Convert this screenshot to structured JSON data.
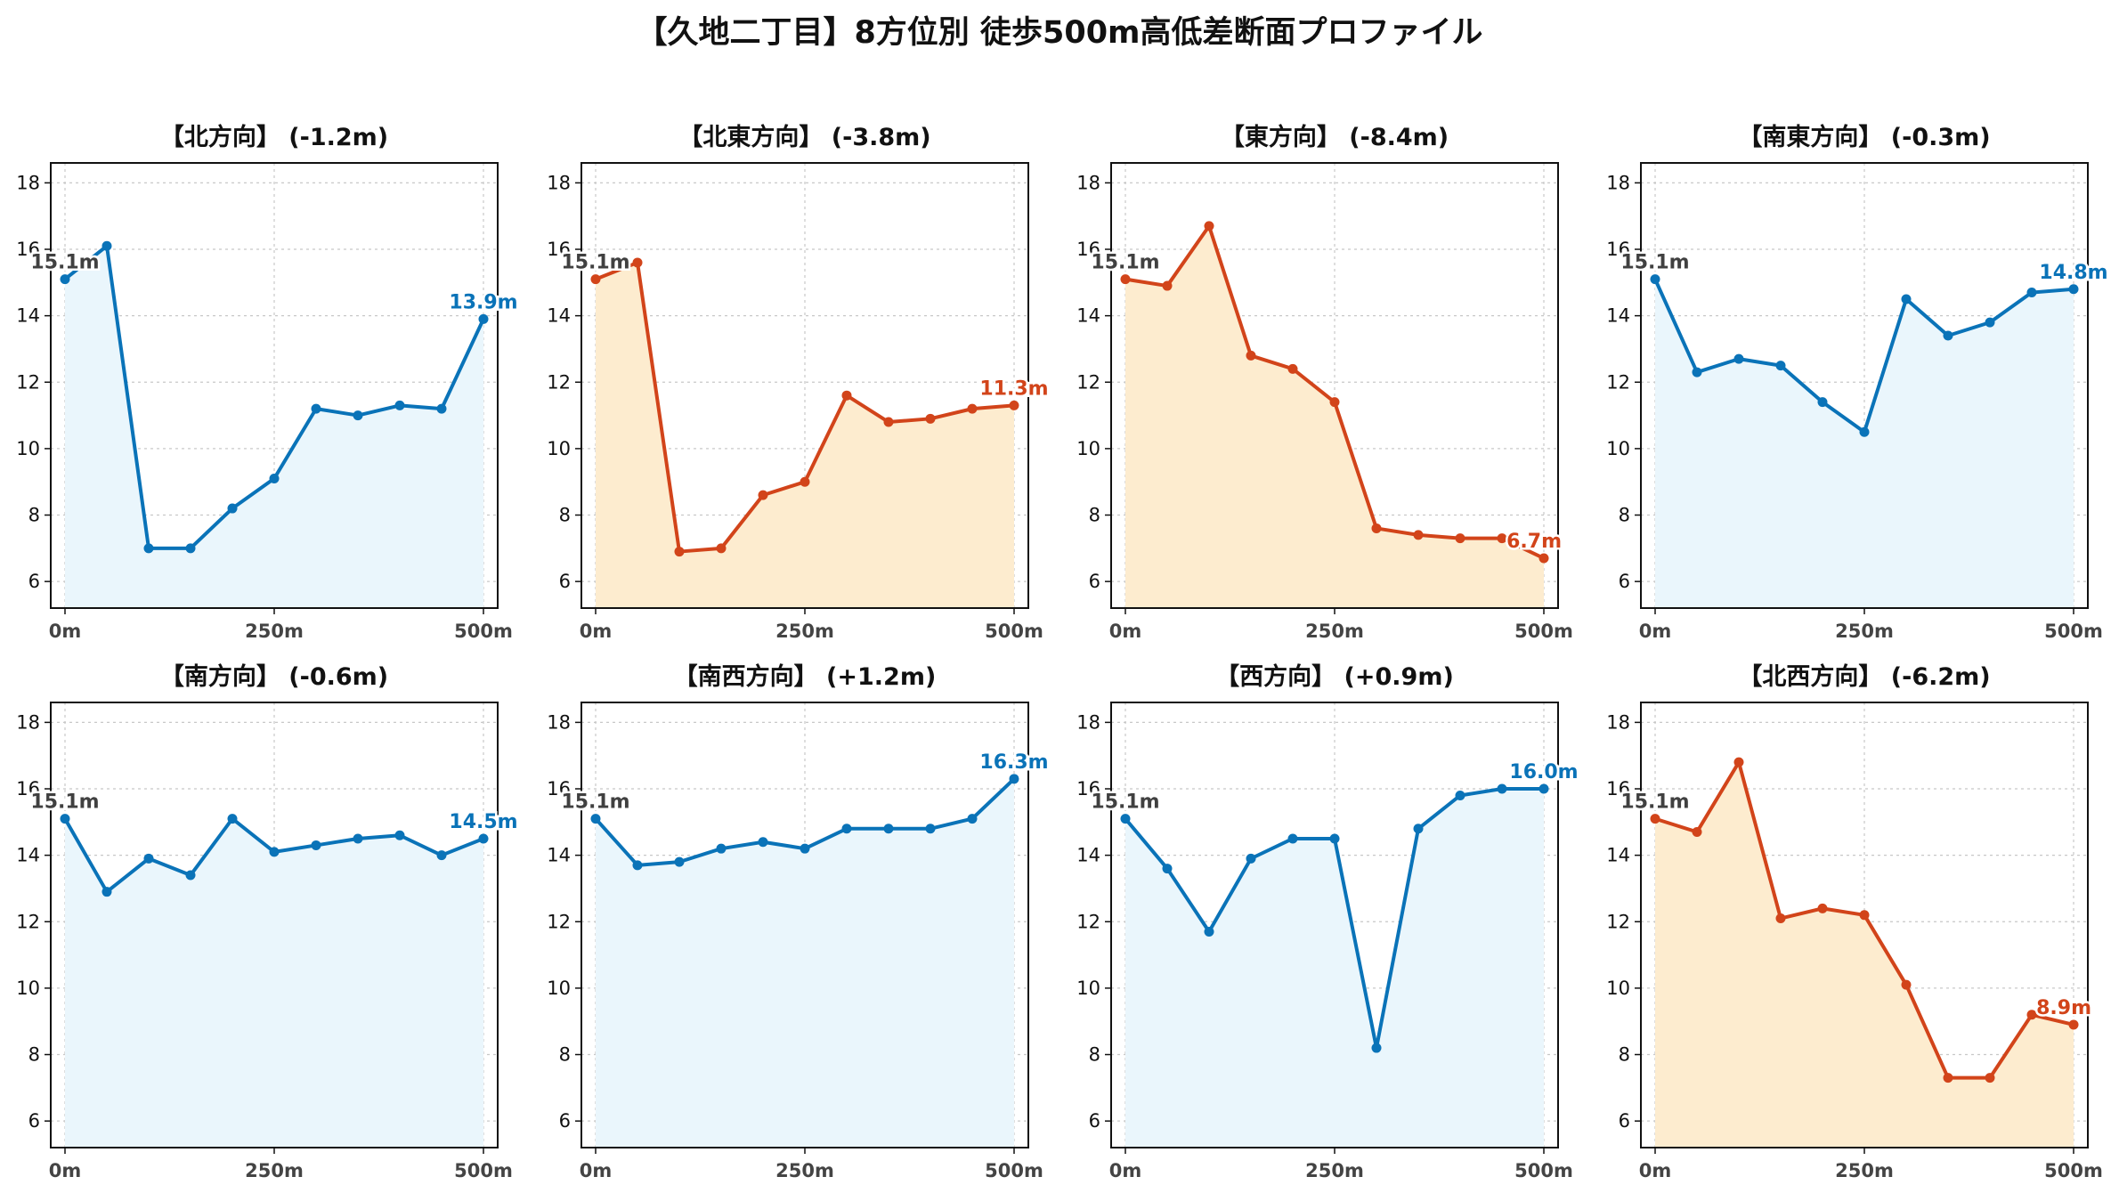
{
  "page": {
    "title": "【久地二丁目】8方位別 徒歩500m高低差断面プロファイル"
  },
  "colors": {
    "up_line": "#0a73b8",
    "up_fill": "#eaf6fc",
    "down_line": "#d2441a",
    "down_fill": "#fdeccf",
    "start_label": "#404040",
    "grid": "#c8c8c8"
  },
  "chart_data": [
    {
      "type": "area",
      "title": "【北方向】 (-1.2m)",
      "trend": "up",
      "x": [
        0,
        50,
        100,
        150,
        200,
        250,
        300,
        350,
        400,
        450,
        500
      ],
      "y": [
        15.1,
        16.1,
        7.0,
        7.0,
        8.2,
        9.1,
        11.2,
        11.0,
        11.3,
        11.2,
        13.9
      ],
      "start_label": "15.1m",
      "end_label": "13.9m",
      "xticks": [
        "0m",
        "250m",
        "500m"
      ],
      "yticks": [
        "6",
        "8",
        "10",
        "12",
        "14",
        "16",
        "18"
      ],
      "ylim": [
        5.2,
        18.6
      ],
      "grid": true
    },
    {
      "type": "area",
      "title": "【北東方向】 (-3.8m)",
      "trend": "down",
      "x": [
        0,
        50,
        100,
        150,
        200,
        250,
        300,
        350,
        400,
        450,
        500
      ],
      "y": [
        15.1,
        15.6,
        6.9,
        7.0,
        8.6,
        9.0,
        11.6,
        10.8,
        10.9,
        11.2,
        11.3
      ],
      "start_label": "15.1m",
      "end_label": "11.3m",
      "xticks": [
        "0m",
        "250m",
        "500m"
      ],
      "yticks": [
        "6",
        "8",
        "10",
        "12",
        "14",
        "16",
        "18"
      ],
      "ylim": [
        5.2,
        18.6
      ],
      "grid": true
    },
    {
      "type": "area",
      "title": "【東方向】 (-8.4m)",
      "trend": "down",
      "x": [
        0,
        50,
        100,
        150,
        200,
        250,
        300,
        350,
        400,
        450,
        500
      ],
      "y": [
        15.1,
        14.9,
        16.7,
        12.8,
        12.4,
        11.4,
        7.6,
        7.4,
        7.3,
        7.3,
        6.7
      ],
      "start_label": "15.1m",
      "end_label": "6.7m",
      "xticks": [
        "0m",
        "250m",
        "500m"
      ],
      "yticks": [
        "6",
        "8",
        "10",
        "12",
        "14",
        "16",
        "18"
      ],
      "ylim": [
        5.2,
        18.6
      ],
      "grid": true
    },
    {
      "type": "area",
      "title": "【南東方向】 (-0.3m)",
      "trend": "up",
      "x": [
        0,
        50,
        100,
        150,
        200,
        250,
        300,
        350,
        400,
        450,
        500
      ],
      "y": [
        15.1,
        12.3,
        12.7,
        12.5,
        11.4,
        10.5,
        14.5,
        13.4,
        13.8,
        14.7,
        14.8
      ],
      "start_label": "15.1m",
      "end_label": "14.8m",
      "xticks": [
        "0m",
        "250m",
        "500m"
      ],
      "yticks": [
        "6",
        "8",
        "10",
        "12",
        "14",
        "16",
        "18"
      ],
      "ylim": [
        5.2,
        18.6
      ],
      "grid": true
    },
    {
      "type": "area",
      "title": "【南方向】 (-0.6m)",
      "trend": "up",
      "x": [
        0,
        50,
        100,
        150,
        200,
        250,
        300,
        350,
        400,
        450,
        500
      ],
      "y": [
        15.1,
        12.9,
        13.9,
        13.4,
        15.1,
        14.1,
        14.3,
        14.5,
        14.6,
        14.0,
        14.5
      ],
      "start_label": "15.1m",
      "end_label": "14.5m",
      "xticks": [
        "0m",
        "250m",
        "500m"
      ],
      "yticks": [
        "6",
        "8",
        "10",
        "12",
        "14",
        "16",
        "18"
      ],
      "ylim": [
        5.2,
        18.6
      ],
      "grid": true
    },
    {
      "type": "area",
      "title": "【南西方向】 (+1.2m)",
      "trend": "up",
      "x": [
        0,
        50,
        100,
        150,
        200,
        250,
        300,
        350,
        400,
        450,
        500
      ],
      "y": [
        15.1,
        13.7,
        13.8,
        14.2,
        14.4,
        14.2,
        14.8,
        14.8,
        14.8,
        15.1,
        16.3
      ],
      "start_label": "15.1m",
      "end_label": "16.3m",
      "xticks": [
        "0m",
        "250m",
        "500m"
      ],
      "yticks": [
        "6",
        "8",
        "10",
        "12",
        "14",
        "16",
        "18"
      ],
      "ylim": [
        5.2,
        18.6
      ],
      "grid": true
    },
    {
      "type": "area",
      "title": "【西方向】 (+0.9m)",
      "trend": "up",
      "x": [
        0,
        50,
        100,
        150,
        200,
        250,
        300,
        350,
        400,
        450,
        500
      ],
      "y": [
        15.1,
        13.6,
        11.7,
        13.9,
        14.5,
        14.5,
        8.2,
        14.8,
        15.8,
        16.0,
        16.0
      ],
      "start_label": "15.1m",
      "end_label": "16.0m",
      "xticks": [
        "0m",
        "250m",
        "500m"
      ],
      "yticks": [
        "6",
        "8",
        "10",
        "12",
        "14",
        "16",
        "18"
      ],
      "ylim": [
        5.2,
        18.6
      ],
      "grid": true
    },
    {
      "type": "area",
      "title": "【北西方向】 (-6.2m)",
      "trend": "down",
      "x": [
        0,
        50,
        100,
        150,
        200,
        250,
        300,
        350,
        400,
        450,
        500
      ],
      "y": [
        15.1,
        14.7,
        16.8,
        12.1,
        12.4,
        12.2,
        10.1,
        7.3,
        7.3,
        9.2,
        8.9
      ],
      "start_label": "15.1m",
      "end_label": "8.9m",
      "xticks": [
        "0m",
        "250m",
        "500m"
      ],
      "yticks": [
        "6",
        "8",
        "10",
        "12",
        "14",
        "16",
        "18"
      ],
      "ylim": [
        5.2,
        18.6
      ],
      "grid": true
    }
  ]
}
